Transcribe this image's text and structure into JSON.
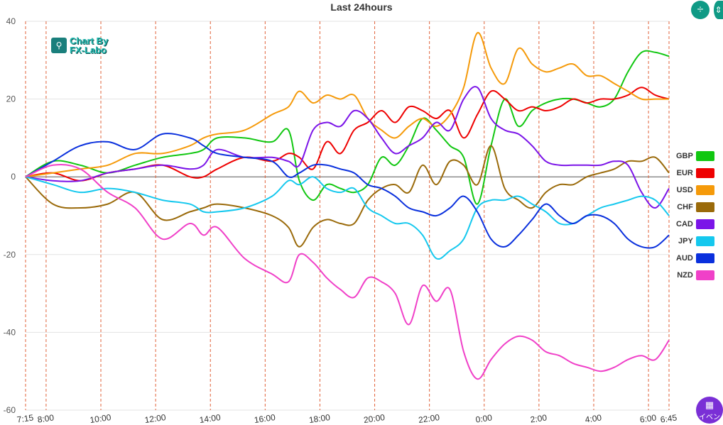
{
  "chart_data": {
    "type": "line",
    "title": "Last 24hours",
    "ylim": [
      -60,
      40
    ],
    "y_ticks": [
      "40",
      "20",
      "0",
      "-20",
      "-40",
      "-60"
    ],
    "x_tick_labels": [
      "7:15",
      "8:00",
      "10:00",
      "12:00",
      "14:00",
      "16:00",
      "18:00",
      "20:00",
      "22:00",
      "0:00",
      "2:00",
      "4:00",
      "6:00",
      "6:45"
    ],
    "x_tick_hours": [
      0,
      0.75,
      2.75,
      4.75,
      6.75,
      8.75,
      10.75,
      12.75,
      14.75,
      16.75,
      18.75,
      20.75,
      22.75,
      23.5
    ],
    "grid": "horizontal lines and dashed vertical lines at each time label",
    "legend_position": "right",
    "series": [
      {
        "name": "GBP",
        "color": "#11c711",
        "x": [
          0,
          1,
          2,
          3,
          4,
          5,
          6,
          6.5,
          7,
          8,
          9,
          9.6,
          10,
          10.5,
          11,
          11.5,
          12,
          12.5,
          13,
          13.5,
          14,
          14.5,
          15,
          15.5,
          16,
          16.5,
          17,
          17.5,
          18,
          18.5,
          19,
          19.5,
          20,
          20.5,
          21,
          21.5,
          22,
          22.5,
          23,
          23.5
        ],
        "y": [
          0,
          4,
          3,
          1,
          3,
          5,
          6,
          7,
          10,
          10,
          9,
          12,
          -1,
          -6,
          -2,
          -3,
          -4,
          -2,
          5,
          3,
          8,
          15,
          12,
          8,
          5,
          -7,
          8,
          20,
          13,
          17,
          19,
          20,
          20,
          19,
          18,
          20,
          27,
          32,
          32,
          31
        ]
      },
      {
        "name": "EUR",
        "color": "#ee0000",
        "x": [
          0,
          1,
          2,
          3,
          4,
          5,
          6,
          6.5,
          7,
          8,
          9,
          9.6,
          10,
          10.5,
          11,
          11.5,
          12,
          12.5,
          13,
          13.5,
          14,
          14.5,
          15,
          15.5,
          16,
          16.5,
          17,
          17.5,
          18,
          18.5,
          19,
          19.5,
          20,
          20.5,
          21,
          21.5,
          22,
          22.5,
          23,
          23.5
        ],
        "y": [
          0,
          1,
          -1,
          1,
          2,
          3,
          0,
          0,
          2,
          5,
          4,
          6,
          5,
          2,
          9,
          6,
          12,
          14,
          17,
          14,
          18,
          17,
          15,
          17,
          10,
          16,
          22,
          20,
          17,
          18,
          17,
          18,
          20,
          19,
          20,
          20,
          21,
          23,
          21,
          20
        ]
      },
      {
        "name": "USD",
        "color": "#f59a0a",
        "x": [
          0,
          1,
          2,
          3,
          4,
          5,
          6,
          6.5,
          7,
          8,
          9,
          9.6,
          10,
          10.5,
          11,
          11.5,
          12,
          12.5,
          13,
          13.5,
          14,
          14.5,
          15,
          15.5,
          16,
          16.5,
          17,
          17.5,
          18,
          18.5,
          19,
          19.5,
          20,
          20.5,
          21,
          21.5,
          22,
          22.5,
          23,
          23.5
        ],
        "y": [
          0,
          1,
          2,
          3,
          6,
          6,
          8,
          10,
          11,
          12,
          16,
          18,
          22,
          19,
          21,
          20,
          21,
          15,
          12,
          10,
          13,
          15,
          13,
          16,
          23,
          37,
          28,
          24,
          33,
          29,
          27,
          28,
          29,
          26,
          26,
          24,
          22,
          20,
          20,
          20
        ]
      },
      {
        "name": "CHF",
        "color": "#9a6a0a",
        "x": [
          0,
          1,
          2,
          3,
          4,
          5,
          6,
          6.5,
          7,
          8,
          9,
          9.6,
          10,
          10.5,
          11,
          11.5,
          12,
          12.5,
          13,
          13.5,
          14,
          14.5,
          15,
          15.5,
          16,
          16.5,
          17,
          17.5,
          18,
          18.5,
          19,
          19.5,
          20,
          20.5,
          21,
          21.5,
          22,
          22.5,
          23,
          23.5
        ],
        "y": [
          0,
          -7,
          -8,
          -7,
          -4,
          -11,
          -9,
          -8,
          -7,
          -8,
          -10,
          -13,
          -18,
          -13,
          -11,
          -12,
          -12,
          -6,
          -3,
          -2,
          -4,
          3,
          -2,
          4,
          3,
          -2,
          8,
          -3,
          -6,
          -8,
          -4,
          -2,
          -2,
          0,
          1,
          2,
          4,
          4,
          5,
          1
        ]
      },
      {
        "name": "CAD",
        "color": "#7b14e8",
        "x": [
          0,
          1,
          2,
          3,
          4,
          5,
          6,
          6.5,
          7,
          8,
          9,
          9.6,
          10,
          10.5,
          11,
          11.5,
          12,
          12.5,
          13,
          13.5,
          14,
          14.5,
          15,
          15.5,
          16,
          16.5,
          17,
          17.5,
          18,
          18.5,
          19,
          19.5,
          20,
          20.5,
          21,
          21.5,
          22,
          22.5,
          23,
          23.5
        ],
        "y": [
          0,
          -1,
          -1,
          1,
          2,
          3,
          2,
          3,
          7,
          5,
          5,
          4,
          3,
          12,
          14,
          13,
          17,
          15,
          10,
          6,
          8,
          10,
          14,
          12,
          20,
          23,
          15,
          12,
          11,
          8,
          4,
          3,
          3,
          3,
          3,
          4,
          3,
          -4,
          -8,
          -3
        ]
      },
      {
        "name": "JPY",
        "color": "#15c8ee",
        "x": [
          0,
          1,
          2,
          3,
          4,
          5,
          6,
          6.5,
          7,
          8,
          9,
          9.6,
          10,
          10.5,
          11,
          11.5,
          12,
          12.5,
          13,
          13.5,
          14,
          14.5,
          15,
          15.5,
          16,
          16.5,
          17,
          17.5,
          18,
          18.5,
          19,
          19.5,
          20,
          20.5,
          21,
          21.5,
          22,
          22.5,
          23,
          23.5
        ],
        "y": [
          0,
          -2,
          -4,
          -3,
          -4,
          -6,
          -7,
          -9,
          -9,
          -8,
          -5,
          -1,
          -2,
          0,
          -3,
          -4,
          -3,
          -8,
          -10,
          -12,
          -12,
          -15,
          -21,
          -19,
          -16,
          -8,
          -6,
          -6,
          -5,
          -7,
          -9,
          -12,
          -12,
          -10,
          -8,
          -7,
          -6,
          -5,
          -6,
          -10
        ]
      },
      {
        "name": "AUD",
        "color": "#0a30dd",
        "x": [
          0,
          1,
          2,
          3,
          4,
          5,
          6,
          6.5,
          7,
          8,
          9,
          9.6,
          10,
          10.5,
          11,
          11.5,
          12,
          12.5,
          13,
          13.5,
          14,
          14.5,
          15,
          15.5,
          16,
          16.5,
          17,
          17.5,
          18,
          18.5,
          19,
          19.5,
          20,
          20.5,
          21,
          21.5,
          22,
          22.5,
          23,
          23.5
        ],
        "y": [
          0,
          4,
          8,
          9,
          7,
          11,
          10,
          8,
          6,
          5,
          4,
          0,
          1,
          3,
          3,
          2,
          1,
          -2,
          -3,
          -5,
          -8,
          -9,
          -10,
          -8,
          -5,
          -9,
          -16,
          -18,
          -15,
          -11,
          -7,
          -10,
          -12,
          -10,
          -10,
          -12,
          -16,
          -18,
          -18,
          -15
        ]
      },
      {
        "name": "NZD",
        "color": "#f040c8",
        "x": [
          0,
          1,
          2,
          3,
          4,
          5,
          6,
          6.5,
          7,
          8,
          9,
          9.6,
          10,
          10.5,
          11,
          11.5,
          12,
          12.5,
          13,
          13.5,
          14,
          14.5,
          15,
          15.5,
          16,
          16.5,
          17,
          17.5,
          18,
          18.5,
          19,
          19.5,
          20,
          20.5,
          21,
          21.5,
          22,
          22.5,
          23,
          23.5
        ],
        "y": [
          0,
          3,
          2,
          -4,
          -8,
          -16,
          -12,
          -15,
          -13,
          -21,
          -25,
          -27,
          -20,
          -22,
          -26,
          -29,
          -31,
          -26,
          -27,
          -30,
          -38,
          -28,
          -32,
          -29,
          -45,
          -52,
          -47,
          -43,
          -41,
          -42,
          -45,
          -46,
          -48,
          -49,
          -50,
          -49,
          -47,
          -46,
          -47,
          -42
        ]
      }
    ]
  },
  "logo": {
    "line1": "Chart By",
    "line2": "FX-Labo"
  },
  "toolbar": {
    "compress_icon": "÷",
    "expand_icon": "⇕"
  },
  "event_button": {
    "label": "イベン",
    "icon": "calendar-icon"
  }
}
